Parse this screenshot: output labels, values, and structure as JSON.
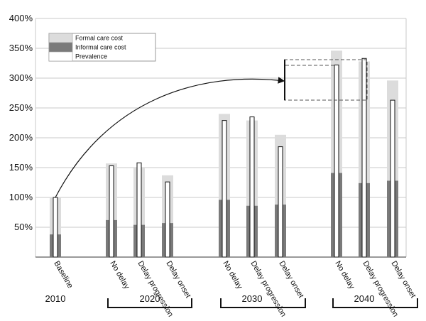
{
  "chart_data": {
    "type": "bar",
    "ylim": [
      0,
      400
    ],
    "y_ticks": [
      "50%",
      "100%",
      "150%",
      "200%",
      "250%",
      "300%",
      "350%",
      "400%"
    ],
    "y_tick_values": [
      50,
      100,
      150,
      200,
      250,
      300,
      350,
      400
    ],
    "grid": true,
    "legend_position": "top-left",
    "categories": [
      "Baseline",
      "No delay",
      "Delay progression",
      "Delay onset",
      "No delay",
      "Delay progression",
      "Delay onset",
      "No delay",
      "Delay progression",
      "Delay onset"
    ],
    "groups": [
      "2010",
      "2020",
      "2030",
      "2040"
    ],
    "group_of_category": [
      0,
      1,
      1,
      1,
      2,
      2,
      2,
      3,
      3,
      3
    ],
    "series": [
      {
        "name": "Formal care cost",
        "color": "#dcdcdc",
        "values": [
          100,
          157,
          150,
          137,
          240,
          229,
          205,
          346,
          328,
          296
        ]
      },
      {
        "name": "Informal care cost",
        "color": "#7a7a7a",
        "values": [
          38,
          62,
          54,
          57,
          96,
          86,
          88,
          141,
          124,
          128
        ]
      },
      {
        "name": "Prevalence",
        "color": "#ffffff",
        "values": [
          100,
          153,
          158,
          126,
          229,
          235,
          185,
          322,
          333,
          263
        ]
      }
    ]
  }
}
